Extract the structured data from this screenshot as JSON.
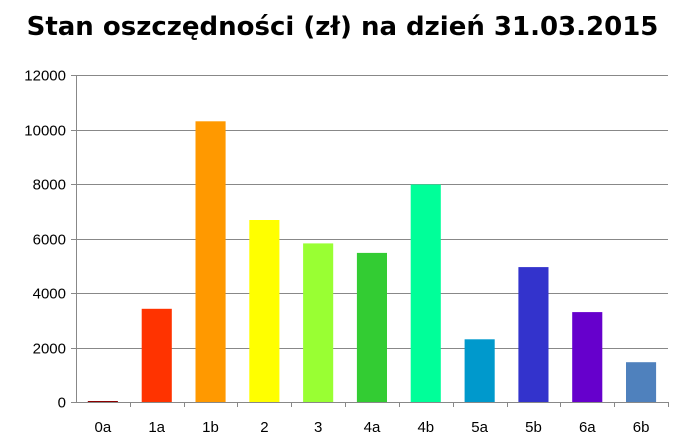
{
  "chart_data": {
    "type": "bar",
    "title": "Stan oszczędności (zł) na dzień 31.03.2015",
    "xlabel": "",
    "ylabel": "",
    "categories": [
      "0a",
      "1a",
      "1b",
      "2",
      "3",
      "4a",
      "4b",
      "5a",
      "5b",
      "6a",
      "6b"
    ],
    "values": [
      30,
      3420,
      10300,
      6680,
      5820,
      5470,
      7980,
      2300,
      4950,
      3300,
      1460
    ],
    "colors": [
      "#8B0000",
      "#FF3300",
      "#FF9900",
      "#FFFF00",
      "#99FF33",
      "#33CC33",
      "#00FF99",
      "#0099CC",
      "#3333CC",
      "#6600CC",
      "#4F81BD"
    ],
    "ylim": [
      0,
      12000
    ],
    "yticks": [
      0,
      2000,
      4000,
      6000,
      8000,
      10000,
      12000
    ],
    "grid": true,
    "legend": "none"
  }
}
